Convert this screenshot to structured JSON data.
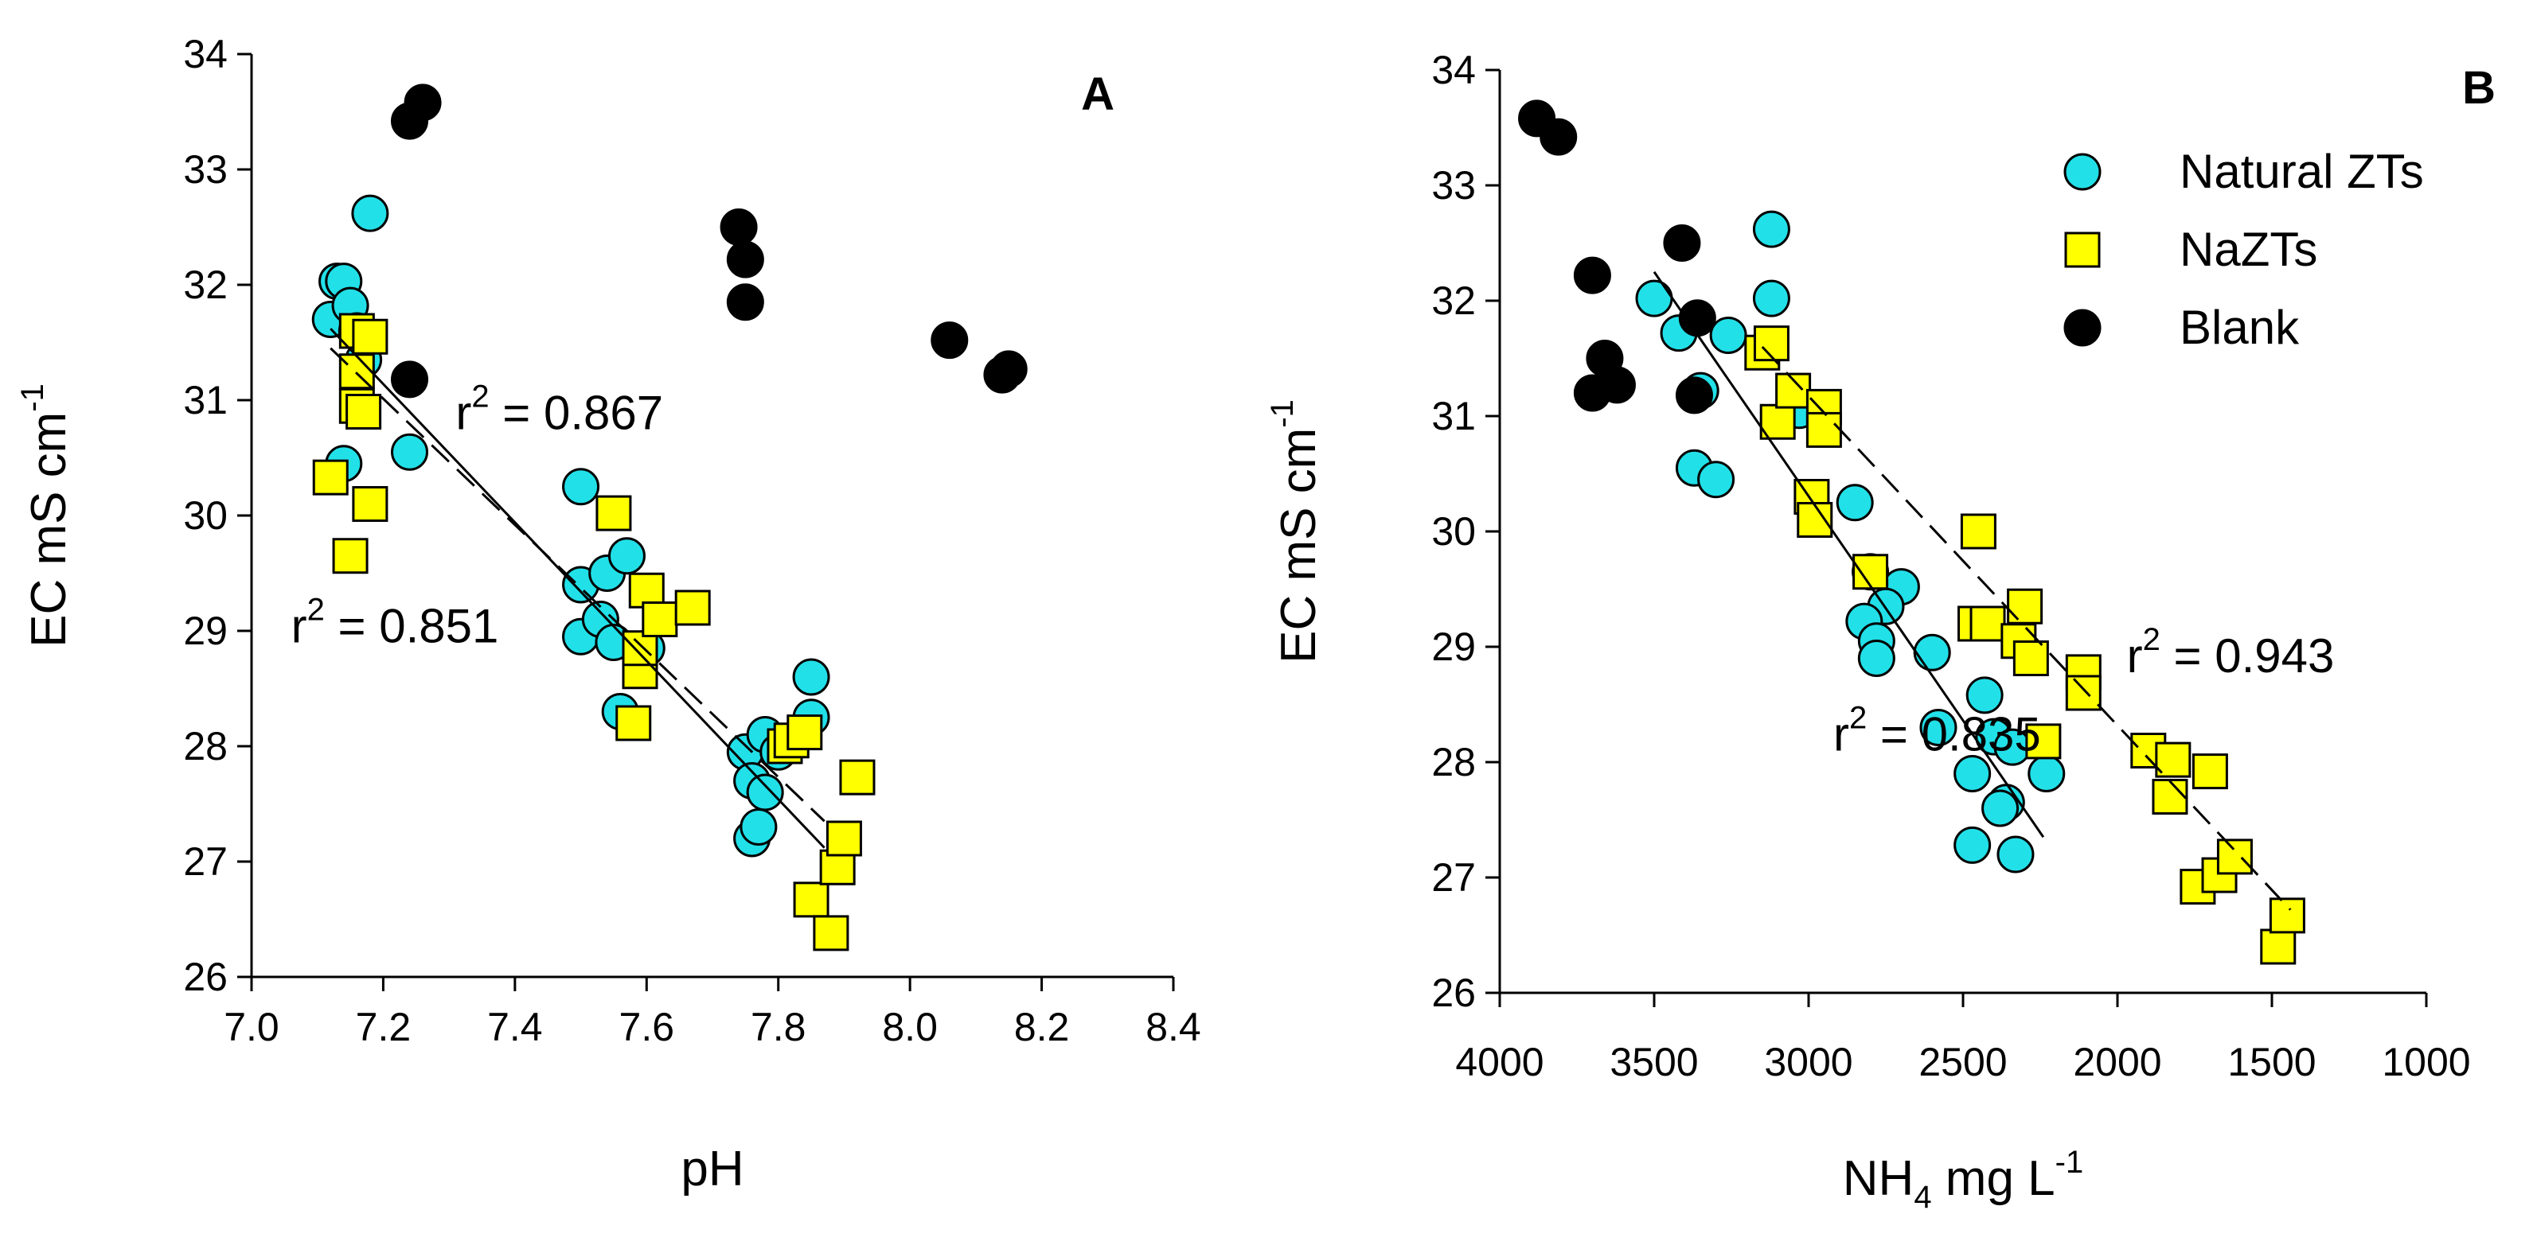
{
  "chart_data": [
    {
      "type": "scatter",
      "panel_label": "A",
      "xlabel": "pH",
      "ylabel": {
        "main": "EC mS cm",
        "sup": "-1"
      },
      "xlim": [
        7.0,
        8.4
      ],
      "ylim": [
        26,
        34
      ],
      "xticks": [
        7.0,
        7.2,
        7.4,
        7.6,
        7.8,
        8.0,
        8.2,
        8.4
      ],
      "xtick_labels": [
        "7.0",
        "7.2",
        "7.4",
        "7.6",
        "7.8",
        "8.0",
        "8.2",
        "8.4"
      ],
      "yticks": [
        26,
        27,
        28,
        29,
        30,
        31,
        32,
        33,
        34
      ],
      "ytick_labels": [
        "26",
        "27",
        "28",
        "29",
        "30",
        "31",
        "32",
        "33",
        "34"
      ],
      "grid": false,
      "series": [
        {
          "name": "Natural ZTs",
          "marker": "circle",
          "color": "#22e0e8",
          "points": [
            [
              7.12,
              31.7
            ],
            [
              7.13,
              32.03
            ],
            [
              7.14,
              32.03
            ],
            [
              7.15,
              31.82
            ],
            [
              7.16,
              31.6
            ],
            [
              7.17,
              31.35
            ],
            [
              7.18,
              32.62
            ],
            [
              7.14,
              30.45
            ],
            [
              7.24,
              30.55
            ],
            [
              7.5,
              30.25
            ],
            [
              7.5,
              29.4
            ],
            [
              7.5,
              28.95
            ],
            [
              7.53,
              29.1
            ],
            [
              7.54,
              29.5
            ],
            [
              7.55,
              28.9
            ],
            [
              7.56,
              28.3
            ],
            [
              7.57,
              29.65
            ],
            [
              7.6,
              28.85
            ],
            [
              7.75,
              27.95
            ],
            [
              7.76,
              27.7
            ],
            [
              7.76,
              27.2
            ],
            [
              7.77,
              27.3
            ],
            [
              7.78,
              28.1
            ],
            [
              7.78,
              27.6
            ],
            [
              7.8,
              27.95
            ],
            [
              7.85,
              28.6
            ],
            [
              7.85,
              28.25
            ]
          ]
        },
        {
          "name": "NaZTs",
          "marker": "square",
          "color": "#ffff00",
          "points": [
            [
              7.12,
              30.33
            ],
            [
              7.15,
              29.65
            ],
            [
              7.16,
              31.6
            ],
            [
              7.16,
              31.25
            ],
            [
              7.16,
              30.95
            ],
            [
              7.17,
              30.9
            ],
            [
              7.18,
              31.55
            ],
            [
              7.18,
              30.1
            ],
            [
              7.55,
              30.02
            ],
            [
              7.58,
              28.2
            ],
            [
              7.59,
              28.65
            ],
            [
              7.59,
              28.85
            ],
            [
              7.6,
              29.35
            ],
            [
              7.62,
              29.1
            ],
            [
              7.67,
              29.2
            ],
            [
              7.81,
              28.0
            ],
            [
              7.82,
              28.05
            ],
            [
              7.84,
              28.12
            ],
            [
              7.85,
              26.67
            ],
            [
              7.88,
              26.38
            ],
            [
              7.89,
              26.95
            ],
            [
              7.9,
              27.2
            ],
            [
              7.92,
              27.73
            ]
          ]
        },
        {
          "name": "Blank",
          "marker": "circle",
          "color": "#000000",
          "points": [
            [
              7.24,
              33.42
            ],
            [
              7.26,
              33.58
            ],
            [
              7.24,
              31.18
            ],
            [
              7.74,
              32.5
            ],
            [
              7.75,
              32.22
            ],
            [
              7.75,
              31.85
            ],
            [
              8.06,
              31.52
            ],
            [
              8.14,
              31.22
            ],
            [
              8.15,
              31.27
            ]
          ]
        }
      ],
      "fit_lines": [
        {
          "fits": "Natural ZTs",
          "style": "solid",
          "from": [
            7.12,
            31.62
          ],
          "to": [
            7.87,
            27.12
          ]
        },
        {
          "fits": "NaZTs",
          "style": "dashed",
          "from": [
            7.12,
            31.45
          ],
          "to": [
            7.87,
            27.35
          ]
        }
      ],
      "annotations": [
        {
          "id": "r2-upper",
          "prefix": "r",
          "sup": "2",
          "text": " = 0.867",
          "x": 7.31,
          "y": 30.75
        },
        {
          "id": "r2-lower",
          "prefix": "r",
          "sup": "2",
          "text": " = 0.851",
          "x": 7.06,
          "y": 28.9
        }
      ]
    },
    {
      "type": "scatter",
      "panel_label": "B",
      "xlabel": {
        "main": "NH",
        "sub": "4",
        "rest": " mg L",
        "sup": "-1"
      },
      "ylabel": {
        "main": "EC mS cm",
        "sup": "-1"
      },
      "xlim": [
        4000,
        1000
      ],
      "x_reversed": true,
      "ylim": [
        26,
        34
      ],
      "xticks": [
        4000,
        3500,
        3000,
        2500,
        2000,
        1500,
        1000
      ],
      "xtick_labels": [
        "4000",
        "3500",
        "3000",
        "2500",
        "2000",
        "1500",
        "1000"
      ],
      "yticks": [
        26,
        27,
        28,
        29,
        30,
        31,
        32,
        33,
        34
      ],
      "ytick_labels": [
        "26",
        "27",
        "28",
        "29",
        "30",
        "31",
        "32",
        "33",
        "34"
      ],
      "grid": false,
      "legend": {
        "position": "top-right",
        "entries": [
          "Natural ZTs",
          "NaZTs",
          "Blank"
        ]
      },
      "series": [
        {
          "name": "Natural ZTs",
          "marker": "circle",
          "color": "#22e0e8",
          "points": [
            [
              3500,
              32.02
            ],
            [
              3420,
              31.72
            ],
            [
              3350,
              31.22
            ],
            [
              3370,
              30.55
            ],
            [
              3300,
              30.45
            ],
            [
              3260,
              31.7
            ],
            [
              3120,
              32.62
            ],
            [
              3120,
              32.02
            ],
            [
              3030,
              31.05
            ],
            [
              2850,
              30.25
            ],
            [
              2800,
              29.65
            ],
            [
              2700,
              29.52
            ],
            [
              2750,
              29.35
            ],
            [
              2820,
              29.22
            ],
            [
              2780,
              29.05
            ],
            [
              2780,
              28.9
            ],
            [
              2600,
              28.95
            ],
            [
              2580,
              28.3
            ],
            [
              2470,
              27.9
            ],
            [
              2470,
              27.28
            ],
            [
              2430,
              28.58
            ],
            [
              2400,
              28.22
            ],
            [
              2360,
              27.65
            ],
            [
              2380,
              27.6
            ],
            [
              2340,
              28.13
            ],
            [
              2330,
              27.2
            ],
            [
              2230,
              27.9
            ]
          ]
        },
        {
          "name": "NaZTs",
          "marker": "square",
          "color": "#ffff00",
          "points": [
            [
              3150,
              31.55
            ],
            [
              3120,
              31.63
            ],
            [
              3100,
              30.95
            ],
            [
              3050,
              31.22
            ],
            [
              2950,
              31.08
            ],
            [
              2950,
              30.88
            ],
            [
              2990,
              30.3
            ],
            [
              2980,
              30.1
            ],
            [
              2800,
              29.65
            ],
            [
              2450,
              30.0
            ],
            [
              2460,
              29.2
            ],
            [
              2420,
              29.2
            ],
            [
              2320,
              29.05
            ],
            [
              2300,
              29.35
            ],
            [
              2280,
              28.9
            ],
            [
              2240,
              28.18
            ],
            [
              2110,
              28.78
            ],
            [
              2110,
              28.6
            ],
            [
              1900,
              28.1
            ],
            [
              1830,
              27.7
            ],
            [
              1820,
              28.02
            ],
            [
              1700,
              27.92
            ],
            [
              1740,
              26.92
            ],
            [
              1670,
              27.02
            ],
            [
              1620,
              27.18
            ],
            [
              1480,
              26.4
            ],
            [
              1450,
              26.67
            ]
          ]
        },
        {
          "name": "Blank",
          "marker": "circle",
          "color": "#000000",
          "points": [
            [
              3880,
              33.58
            ],
            [
              3810,
              33.42
            ],
            [
              3700,
              32.22
            ],
            [
              3700,
              31.2
            ],
            [
              3660,
              31.5
            ],
            [
              3620,
              31.27
            ],
            [
              3410,
              32.5
            ],
            [
              3360,
              31.85
            ],
            [
              3370,
              31.18
            ]
          ]
        }
      ],
      "fit_lines": [
        {
          "fits": "Natural ZTs",
          "style": "solid",
          "from": [
            3500,
            32.25
          ],
          "to": [
            2240,
            27.35
          ]
        },
        {
          "fits": "NaZTs",
          "style": "dashed",
          "from": [
            3150,
            31.6
          ],
          "to": [
            1440,
            26.72
          ]
        }
      ],
      "annotations": [
        {
          "id": "r2-right",
          "prefix": "r",
          "sup": "2",
          "text": " = 0.943",
          "x": 1970,
          "y": 28.78
        },
        {
          "id": "r2-left",
          "prefix": "r",
          "sup": "2",
          "text": " = 0.835",
          "x": 2920,
          "y": 28.1
        }
      ]
    }
  ]
}
